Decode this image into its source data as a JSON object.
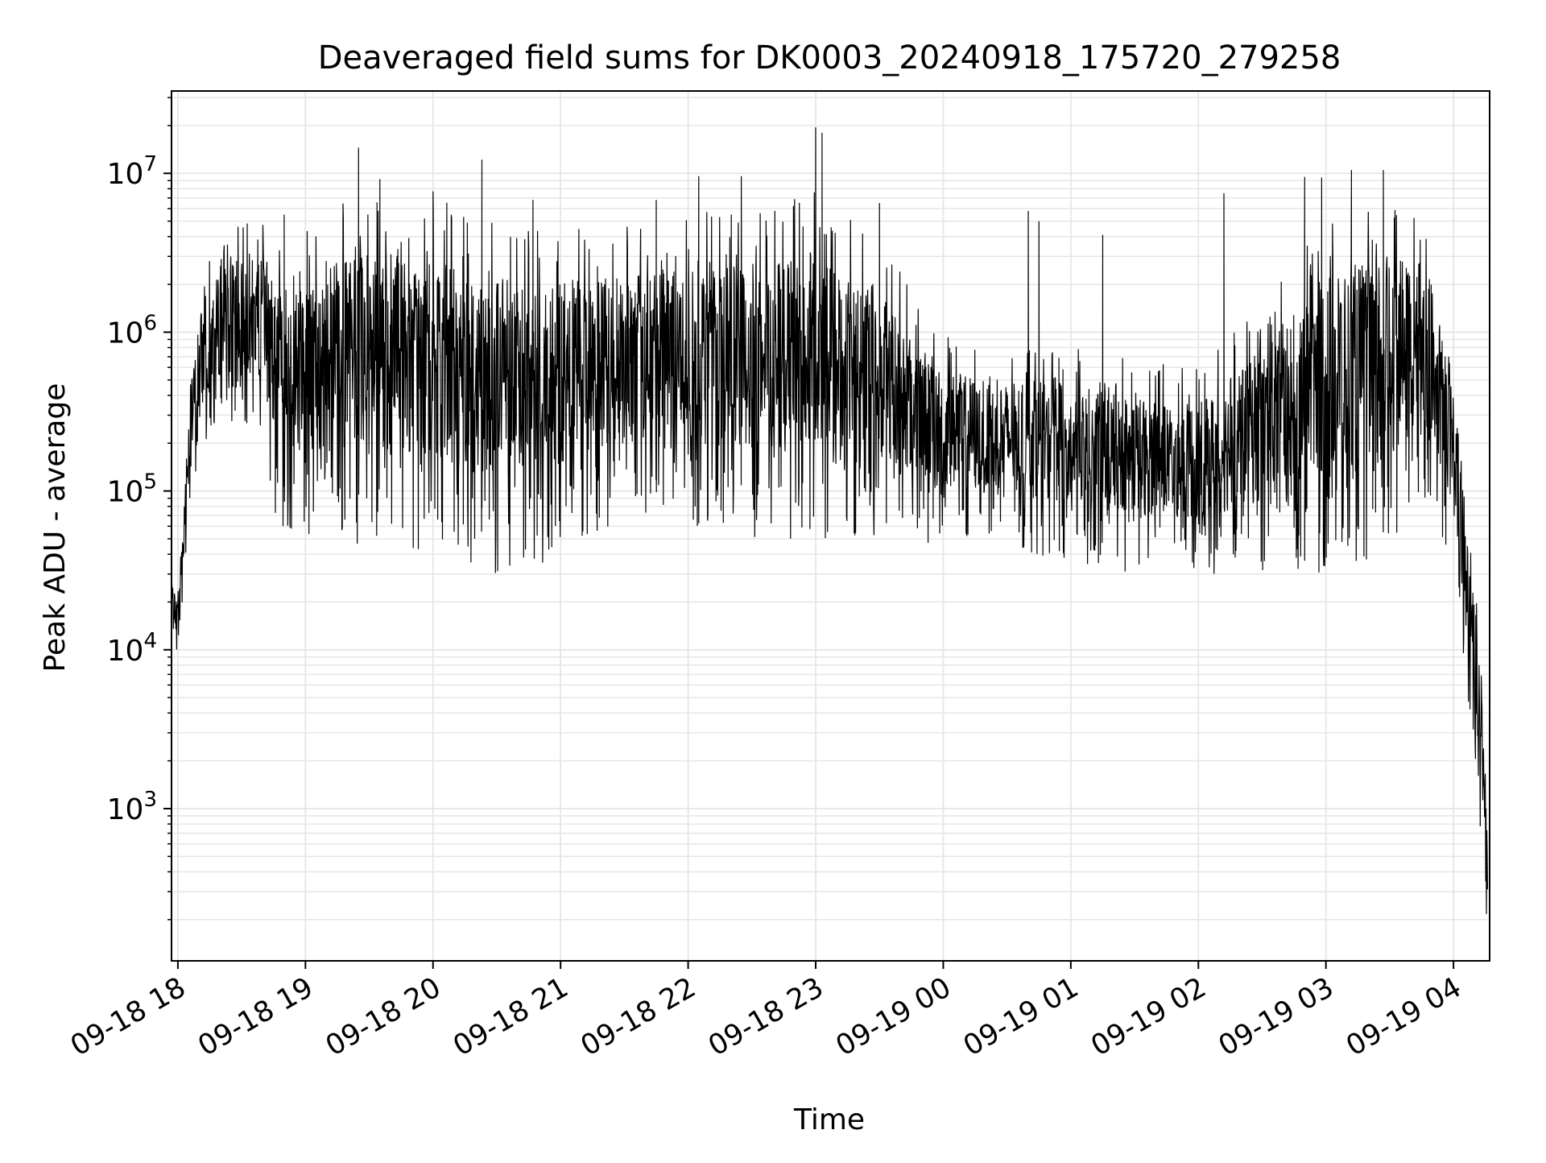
{
  "chart_data": {
    "type": "line",
    "title": "Deaveraged field sums for DK0003_20240918_175720_279258",
    "xlabel": "Time",
    "ylabel": "Peak ADU - average",
    "yscale": "log",
    "grid": true,
    "legend": "none",
    "xlim": [
      "2024-09-18 17:57",
      "2024-09-19 04:17"
    ],
    "ylim": [
      110,
      33000000
    ],
    "x_ticks": [
      "09-18 18",
      "09-18 19",
      "09-18 20",
      "09-18 21",
      "09-18 22",
      "09-18 23",
      "09-19 00",
      "09-19 01",
      "09-19 02",
      "09-19 03",
      "09-19 04"
    ],
    "y_ticks": [
      {
        "base": "10",
        "exp": "3",
        "value": 1000
      },
      {
        "base": "10",
        "exp": "4",
        "value": 10000
      },
      {
        "base": "10",
        "exp": "5",
        "value": 100000
      },
      {
        "base": "10",
        "exp": "6",
        "value": 1000000
      },
      {
        "base": "10",
        "exp": "7",
        "value": 10000000
      }
    ],
    "line_color": "#000000",
    "grid_color": "#e6e6e6",
    "series": [
      {
        "envelope_x": [
          "2024-09-18 17:57",
          "2024-09-18 18:00",
          "2024-09-18 18:05",
          "2024-09-18 18:10",
          "2024-09-18 18:20",
          "2024-09-18 18:30",
          "2024-09-18 18:40",
          "2024-09-18 18:45",
          "2024-09-18 19:00",
          "2024-09-18 19:30",
          "2024-09-18 20:00",
          "2024-09-18 20:30",
          "2024-09-18 21:00",
          "2024-09-18 21:30",
          "2024-09-18 22:00",
          "2024-09-18 22:30",
          "2024-09-18 23:00",
          "2024-09-18 23:30",
          "2024-09-19 00:00",
          "2024-09-19 00:30",
          "2024-09-19 01:00",
          "2024-09-19 01:30",
          "2024-09-19 02:00",
          "2024-09-19 02:30",
          "2024-09-19 03:00",
          "2024-09-19 03:30",
          "2024-09-19 03:50",
          "2024-09-19 04:00",
          "2024-09-19 04:05",
          "2024-09-19 04:10",
          "2024-09-19 04:15",
          "2024-09-19 04:16"
        ],
        "envelope_low": [
          15000,
          9000,
          60000,
          150000,
          250000,
          250000,
          220000,
          60000,
          50000,
          45000,
          40000,
          30000,
          35000,
          60000,
          55000,
          50000,
          50000,
          50000,
          45000,
          45000,
          35000,
          30000,
          28000,
          28000,
          30000,
          40000,
          80000,
          30000,
          8000,
          1800,
          300,
          150
        ],
        "envelope_high": [
          30000,
          25000,
          500000,
          2000000,
          4000000,
          5000000,
          5000000,
          4000000,
          5000000,
          8000000,
          7000000,
          6000000,
          5000000,
          5000000,
          6000000,
          6000000,
          8000000,
          4000000,
          1000000,
          800000,
          800000,
          700000,
          600000,
          1500000,
          6000000,
          8000000,
          4000000,
          800000,
          200000,
          60000,
          3000,
          800
        ],
        "spikes": [
          {
            "x": "2024-09-18 18:50",
            "y": 5500000
          },
          {
            "x": "2024-09-18 19:25",
            "y": 14500000
          },
          {
            "x": "2024-09-18 19:35",
            "y": 9200000
          },
          {
            "x": "2024-09-18 20:00",
            "y": 7700000
          },
          {
            "x": "2024-09-18 20:23",
            "y": 12200000
          },
          {
            "x": "2024-09-18 20:47",
            "y": 6800000
          },
          {
            "x": "2024-09-18 21:45",
            "y": 6800000
          },
          {
            "x": "2024-09-18 22:05",
            "y": 9600000
          },
          {
            "x": "2024-09-18 22:25",
            "y": 9600000
          },
          {
            "x": "2024-09-18 23:00",
            "y": 19500000
          },
          {
            "x": "2024-09-18 23:03",
            "y": 18000000
          },
          {
            "x": "2024-09-18 23:30",
            "y": 6500000
          },
          {
            "x": "2024-09-19 00:40",
            "y": 5800000
          },
          {
            "x": "2024-09-19 00:45",
            "y": 5000000
          },
          {
            "x": "2024-09-19 01:15",
            "y": 4100000
          },
          {
            "x": "2024-09-19 02:12",
            "y": 7500000
          },
          {
            "x": "2024-09-19 02:50",
            "y": 9500000
          },
          {
            "x": "2024-09-19 02:58",
            "y": 9400000
          },
          {
            "x": "2024-09-19 03:12",
            "y": 10500000
          },
          {
            "x": "2024-09-19 03:27",
            "y": 10500000
          }
        ]
      }
    ]
  }
}
